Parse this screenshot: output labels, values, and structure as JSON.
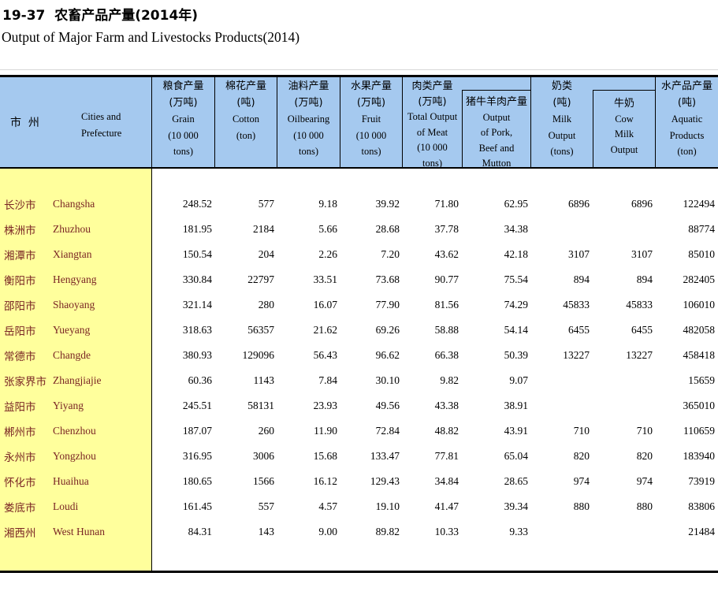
{
  "titles": {
    "zh": "19-37  农畜产品产量(2014年)",
    "en": "Output of Major Farm and Livestocks Products(2014)"
  },
  "colors": {
    "header_bg": "#A5C9EF",
    "rowhead_bg": "#FFFF9C",
    "rowhead_text": "#7A2525",
    "table_line": "#000000",
    "hairline": "#D8D8D8"
  },
  "header": {
    "city": {
      "zh": "市  州",
      "en_lines": [
        "Cities and",
        "Prefecture"
      ]
    },
    "grain": {
      "lines": [
        "粮食产量",
        "(万吨)",
        "Grain",
        "(10 000",
        "tons)"
      ]
    },
    "cotton": {
      "lines": [
        "棉花产量",
        "(吨)",
        "Cotton",
        "(ton)"
      ]
    },
    "oil": {
      "lines": [
        "油料产量",
        "(万吨)",
        "Oilbearing",
        "(10 000",
        "tons)"
      ]
    },
    "fruit": {
      "lines": [
        "水果产量",
        "(万吨)",
        "Fruit",
        "(10 000",
        "tons)"
      ]
    },
    "meat": {
      "lines": [
        "肉类产量",
        "(万吨)",
        "Total Output",
        "of Meat",
        "(10 000",
        "tons)"
      ]
    },
    "pork": {
      "lines": [
        "猪牛羊肉产量",
        "Output",
        "of Pork,",
        "Beef and",
        "Mutton"
      ]
    },
    "milk": {
      "lines": [
        "奶类",
        "(吨)",
        "Milk",
        "Output",
        "(tons)"
      ]
    },
    "cowmilk": {
      "lines": [
        "牛奶",
        "Cow",
        "Milk",
        "Output"
      ]
    },
    "aquatic": {
      "lines": [
        "水产品产量",
        "(吨)",
        "Aquatic",
        "Products",
        "(ton)"
      ]
    }
  },
  "rows": [
    {
      "zh": "长沙市",
      "en": "Changsha",
      "values": [
        "248.52",
        "577",
        "9.18",
        "39.92",
        "71.80",
        "62.95",
        "6896",
        "6896",
        "122494"
      ]
    },
    {
      "zh": "株洲市",
      "en": "Zhuzhou",
      "values": [
        "181.95",
        "2184",
        "5.66",
        "28.68",
        "37.78",
        "34.38",
        "",
        "",
        "88774"
      ]
    },
    {
      "zh": "湘潭市",
      "en": "Xiangtan",
      "values": [
        "150.54",
        "204",
        "2.26",
        "7.20",
        "43.62",
        "42.18",
        "3107",
        "3107",
        "85010"
      ]
    },
    {
      "zh": "衡阳市",
      "en": "Hengyang",
      "values": [
        "330.84",
        "22797",
        "33.51",
        "73.68",
        "90.77",
        "75.54",
        "894",
        "894",
        "282405"
      ]
    },
    {
      "zh": "邵阳市",
      "en": "Shaoyang",
      "values": [
        "321.14",
        "280",
        "16.07",
        "77.90",
        "81.56",
        "74.29",
        "45833",
        "45833",
        "106010"
      ]
    },
    {
      "zh": "岳阳市",
      "en": "Yueyang",
      "values": [
        "318.63",
        "56357",
        "21.62",
        "69.26",
        "58.88",
        "54.14",
        "6455",
        "6455",
        "482058"
      ]
    },
    {
      "zh": "常德市",
      "en": "Changde",
      "values": [
        "380.93",
        "129096",
        "56.43",
        "96.62",
        "66.38",
        "50.39",
        "13227",
        "13227",
        "458418"
      ]
    },
    {
      "zh": "张家界市",
      "en": "Zhangjiajie",
      "values": [
        "60.36",
        "1143",
        "7.84",
        "30.10",
        "9.82",
        "9.07",
        "",
        "",
        "15659"
      ]
    },
    {
      "zh": "益阳市",
      "en": "Yiyang",
      "values": [
        "245.51",
        "58131",
        "23.93",
        "49.56",
        "43.38",
        "38.91",
        "",
        "",
        "365010"
      ]
    },
    {
      "zh": "郴州市",
      "en": "Chenzhou",
      "values": [
        "187.07",
        "260",
        "11.90",
        "72.84",
        "48.82",
        "43.91",
        "710",
        "710",
        "110659"
      ]
    },
    {
      "zh": "永州市",
      "en": "Yongzhou",
      "values": [
        "316.95",
        "3006",
        "15.68",
        "133.47",
        "77.81",
        "65.04",
        "820",
        "820",
        "183940"
      ]
    },
    {
      "zh": "怀化市",
      "en": "Huaihua",
      "values": [
        "180.65",
        "1566",
        "16.12",
        "129.43",
        "34.84",
        "28.65",
        "974",
        "974",
        "73919"
      ]
    },
    {
      "zh": "娄底市",
      "en": "Loudi",
      "values": [
        "161.45",
        "557",
        "4.57",
        "19.10",
        "41.47",
        "39.34",
        "880",
        "880",
        "83806"
      ]
    },
    {
      "zh": "湘西州",
      "en": "West Hunan",
      "values": [
        "84.31",
        "143",
        "9.00",
        "89.82",
        "10.33",
        "9.33",
        "",
        "",
        "21484"
      ]
    }
  ]
}
